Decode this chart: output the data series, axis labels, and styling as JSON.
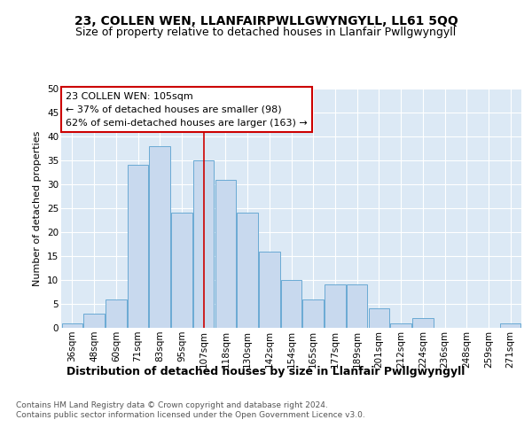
{
  "title1": "23, COLLEN WEN, LLANFAIRPWLLGWYNGYLL, LL61 5QQ",
  "title2": "Size of property relative to detached houses in Llanfair Pwllgwyngyll",
  "xlabel": "Distribution of detached houses by size in Llanfair Pwllgwyngyll",
  "ylabel": "Number of detached properties",
  "footnote1": "Contains HM Land Registry data © Crown copyright and database right 2024.",
  "footnote2": "Contains public sector information licensed under the Open Government Licence v3.0.",
  "annotation_line1": "23 COLLEN WEN: 105sqm",
  "annotation_line2": "← 37% of detached houses are smaller (98)",
  "annotation_line3": "62% of semi-detached houses are larger (163) →",
  "bar_labels": [
    "36sqm",
    "48sqm",
    "60sqm",
    "71sqm",
    "83sqm",
    "95sqm",
    "107sqm",
    "118sqm",
    "130sqm",
    "142sqm",
    "154sqm",
    "165sqm",
    "177sqm",
    "189sqm",
    "201sqm",
    "212sqm",
    "224sqm",
    "236sqm",
    "248sqm",
    "259sqm",
    "271sqm"
  ],
  "bar_values": [
    1,
    3,
    6,
    34,
    38,
    24,
    35,
    31,
    24,
    16,
    10,
    6,
    9,
    9,
    4,
    1,
    2,
    0,
    0,
    0,
    1
  ],
  "bar_color": "#c8d9ee",
  "bar_edge_color": "#6aaad4",
  "highlight_index": 6,
  "vline_color": "#cc0000",
  "ylim": [
    0,
    50
  ],
  "yticks": [
    0,
    5,
    10,
    15,
    20,
    25,
    30,
    35,
    40,
    45,
    50
  ],
  "bg_color": "#ffffff",
  "plot_bg_color": "#dce9f5",
  "annotation_box_facecolor": "#ffffff",
  "annotation_box_edge": "#cc0000",
  "grid_color": "#ffffff",
  "title1_fontsize": 10,
  "title2_fontsize": 9,
  "xlabel_fontsize": 9,
  "ylabel_fontsize": 8,
  "tick_fontsize": 7.5,
  "annotation_fontsize": 8,
  "footnote_fontsize": 6.5
}
